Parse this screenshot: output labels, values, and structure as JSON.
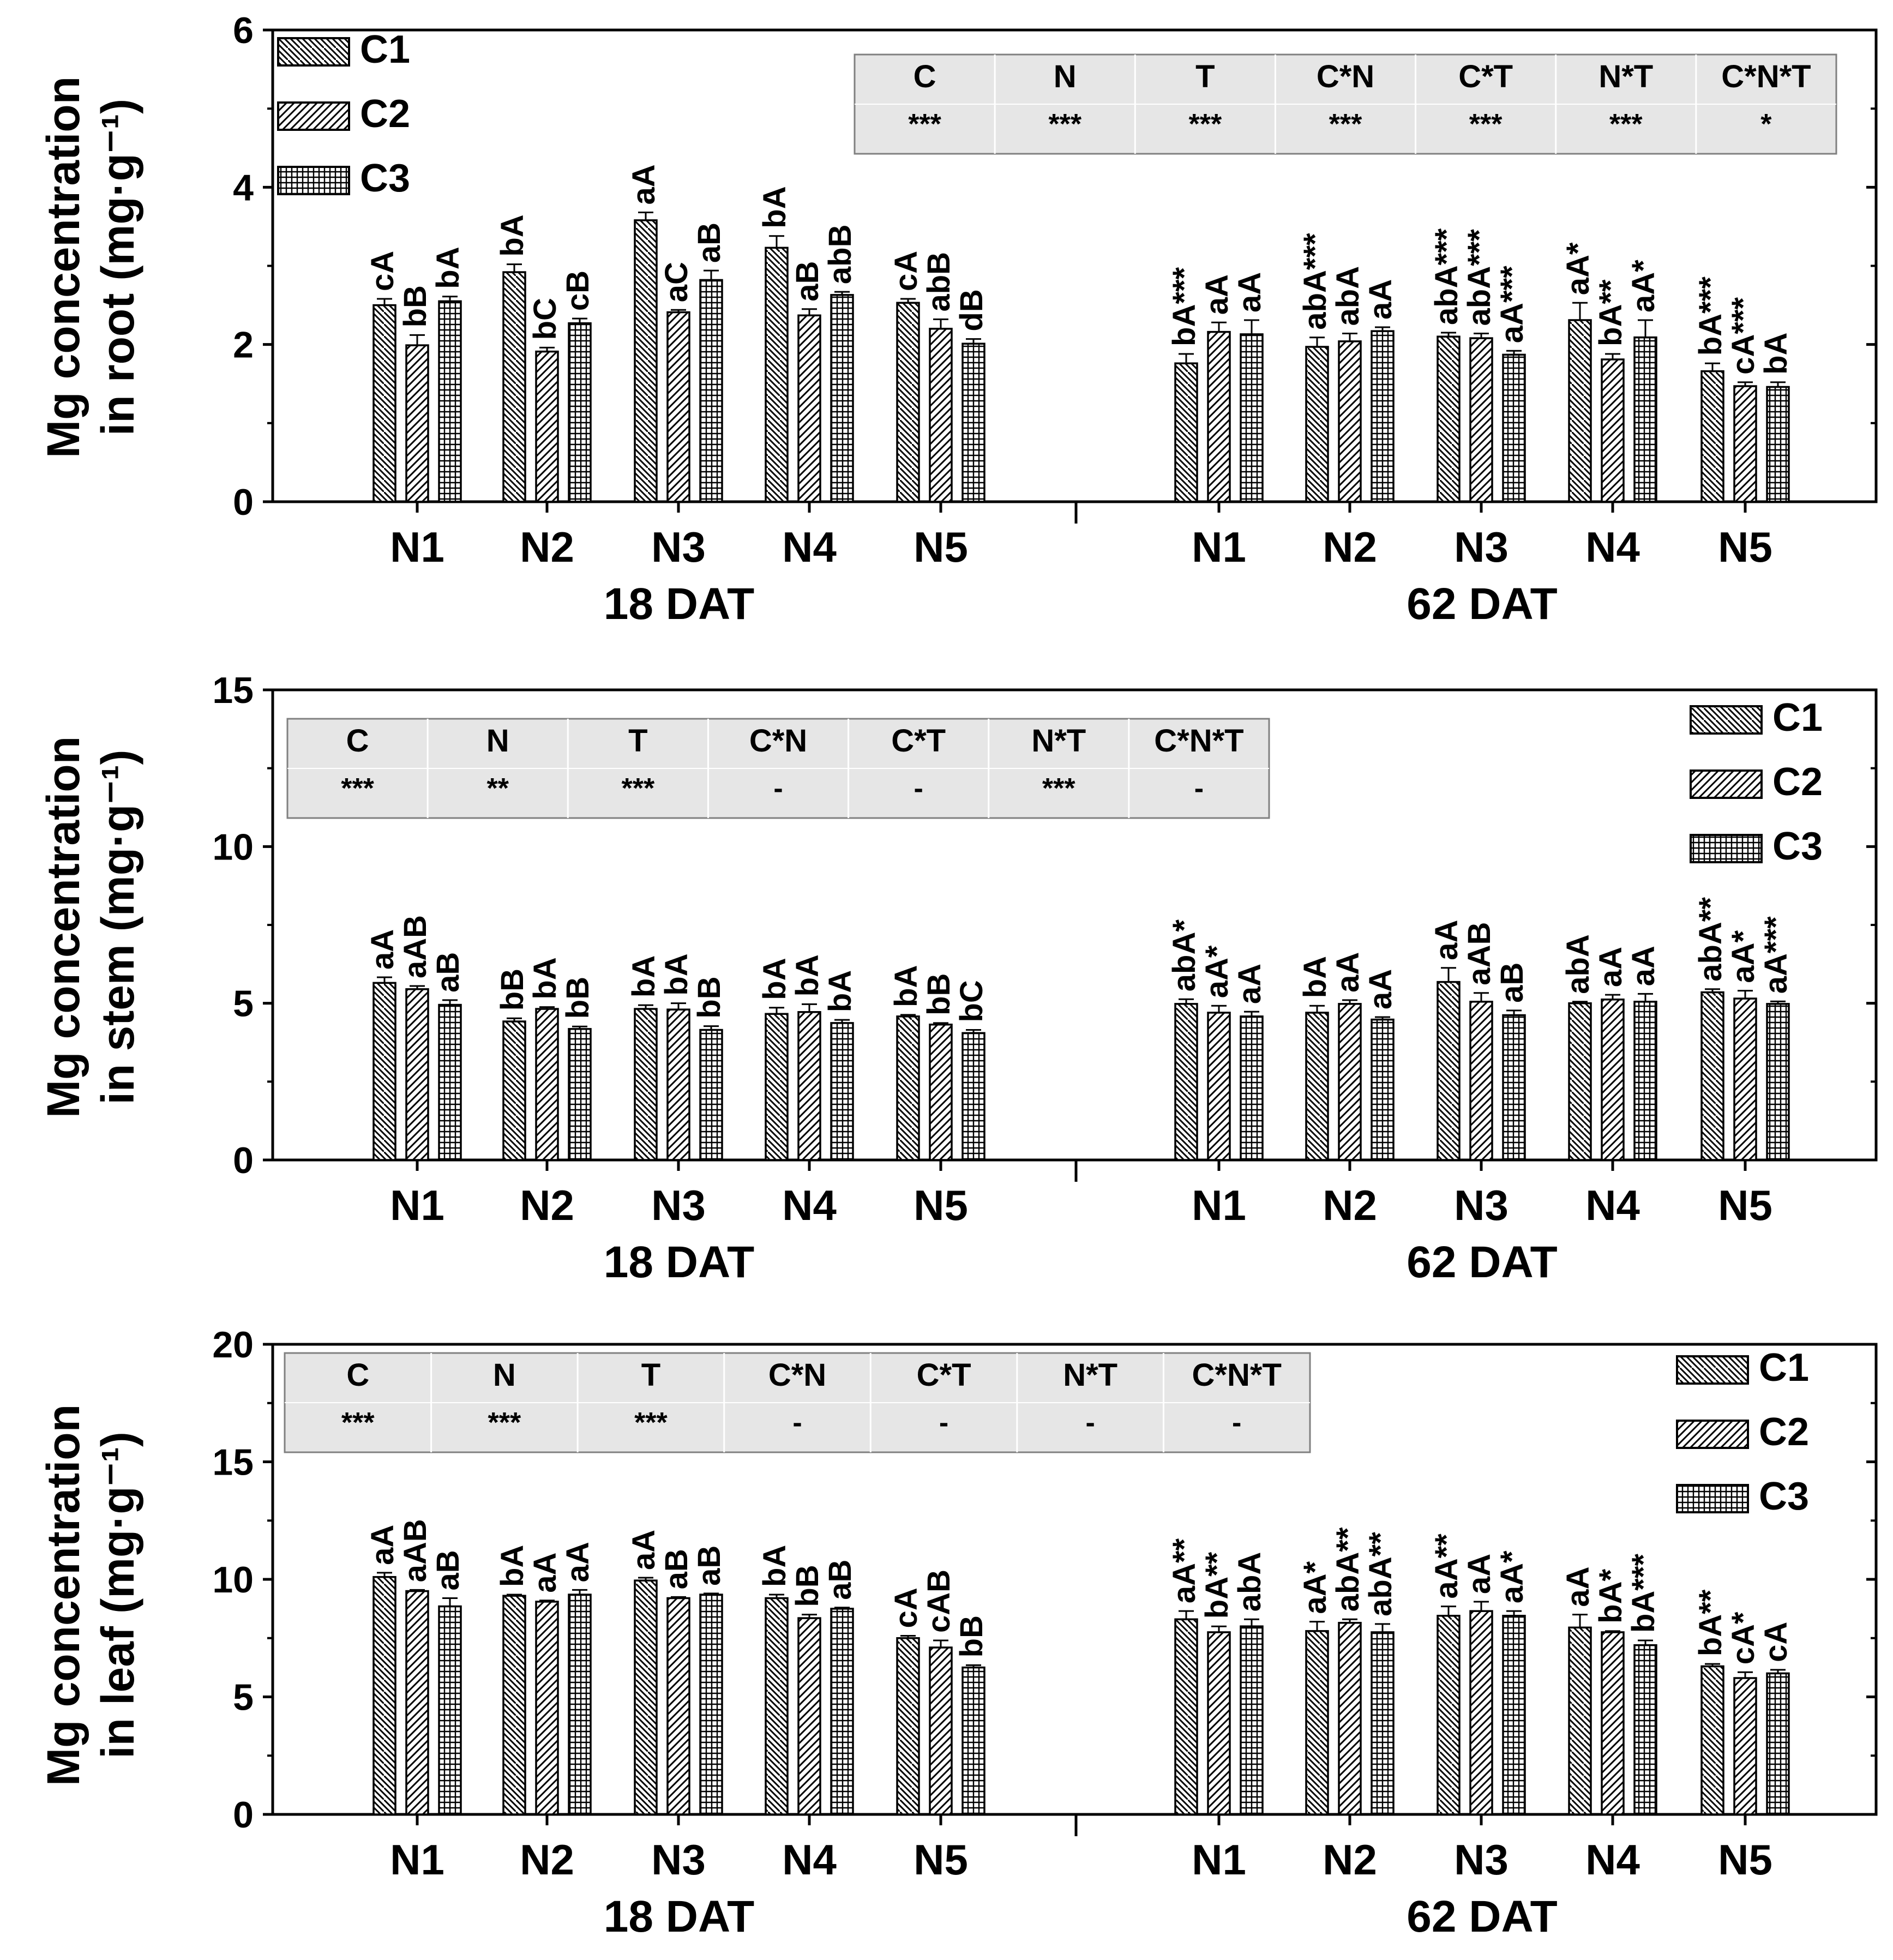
{
  "chart_data": [
    {
      "type": "bar",
      "panel": "root",
      "ylabel_line1": "Mg concentration",
      "ylabel_line2": "in root (mg·g⁻¹)",
      "ylim": [
        0,
        6
      ],
      "yticks": [
        0,
        2,
        4,
        6
      ],
      "legend_position": "top-left",
      "groups": [
        "18 DAT",
        "62 DAT"
      ],
      "categories": [
        "N1",
        "N2",
        "N3",
        "N4",
        "N5"
      ],
      "series_names": [
        "C1",
        "C2",
        "C3"
      ],
      "values": {
        "18 DAT": {
          "C1": [
            2.5,
            2.92,
            3.58,
            3.23,
            2.53
          ],
          "C2": [
            1.99,
            1.91,
            2.41,
            2.37,
            2.2
          ],
          "C3": [
            2.55,
            2.27,
            2.82,
            2.63,
            2.01
          ]
        },
        "62 DAT": {
          "C1": [
            1.76,
            1.97,
            2.1,
            2.31,
            1.66
          ],
          "C2": [
            2.16,
            2.04,
            2.08,
            1.81,
            1.47
          ],
          "C3": [
            2.13,
            2.17,
            1.87,
            2.09,
            1.46
          ]
        }
      },
      "errors": {
        "18 DAT": {
          "C1": [
            0.08,
            0.1,
            0.1,
            0.15,
            0.05
          ],
          "C2": [
            0.13,
            0.05,
            0.03,
            0.08,
            0.12
          ],
          "C3": [
            0.06,
            0.06,
            0.12,
            0.04,
            0.06
          ]
        },
        "62 DAT": {
          "C1": [
            0.12,
            0.12,
            0.05,
            0.22,
            0.1
          ],
          "C2": [
            0.12,
            0.1,
            0.06,
            0.07,
            0.05
          ],
          "C3": [
            0.18,
            0.05,
            0.05,
            0.22,
            0.06
          ]
        }
      },
      "annotations": {
        "18 DAT": {
          "C1": [
            "cA",
            "bA",
            "aA",
            "bA",
            "cA"
          ],
          "C2": [
            "bB",
            "bC",
            "aC",
            "aB",
            "abB"
          ],
          "C3": [
            "bA",
            "cB",
            "aB",
            "abB",
            "dB"
          ]
        },
        "62 DAT": {
          "C1": [
            "bA***",
            "abA***",
            "abA***",
            "aA*",
            "bA***"
          ],
          "C2": [
            "aA",
            "abA",
            "abA***",
            "bA**",
            "cA***"
          ],
          "C3": [
            "aA",
            "aA",
            "aA***",
            "aA*",
            "bA"
          ]
        }
      },
      "anova_table": {
        "headers": [
          "C",
          "N",
          "T",
          "C*N",
          "C*T",
          "N*T",
          "C*N*T"
        ],
        "values": [
          "***",
          "***",
          "***",
          "***",
          "***",
          "***",
          "*"
        ]
      }
    },
    {
      "type": "bar",
      "panel": "stem",
      "ylabel_line1": "Mg concentration",
      "ylabel_line2": "in stem (mg·g⁻¹)",
      "ylim": [
        0,
        15
      ],
      "yticks": [
        0,
        5,
        10,
        15
      ],
      "legend_position": "top-right",
      "groups": [
        "18 DAT",
        "62 DAT"
      ],
      "categories": [
        "N1",
        "N2",
        "N3",
        "N4",
        "N5"
      ],
      "series_names": [
        "C1",
        "C2",
        "C3"
      ],
      "values": {
        "18 DAT": {
          "C1": [
            5.65,
            4.42,
            4.82,
            4.66,
            4.58
          ],
          "C2": [
            5.45,
            4.82,
            4.8,
            4.72,
            4.32
          ],
          "C3": [
            4.95,
            4.18,
            4.15,
            4.37,
            4.05
          ]
        },
        "62 DAT": {
          "C1": [
            4.98,
            4.7,
            5.68,
            5.0,
            5.35
          ],
          "C2": [
            4.7,
            4.98,
            5.05,
            5.12,
            5.15
          ],
          "C3": [
            4.58,
            4.48,
            4.62,
            5.05,
            4.98
          ]
        }
      },
      "errors": {
        "18 DAT": {
          "C1": [
            0.18,
            0.1,
            0.12,
            0.2,
            0.05
          ],
          "C2": [
            0.1,
            0.06,
            0.2,
            0.25,
            0.05
          ],
          "C3": [
            0.15,
            0.08,
            0.12,
            0.1,
            0.1
          ]
        },
        "62 DAT": {
          "C1": [
            0.15,
            0.22,
            0.45,
            0.05,
            0.1
          ],
          "C2": [
            0.22,
            0.12,
            0.28,
            0.15,
            0.25
          ],
          "C3": [
            0.15,
            0.08,
            0.15,
            0.25,
            0.08
          ]
        }
      },
      "annotations": {
        "18 DAT": {
          "C1": [
            "aA",
            "bB",
            "bA",
            "bA",
            "bA"
          ],
          "C2": [
            "aAB",
            "bA",
            "bA",
            "bA",
            "bB"
          ],
          "C3": [
            "aB",
            "bB",
            "bB",
            "bA",
            "bC"
          ]
        },
        "62 DAT": {
          "C1": [
            "abA*",
            "bA",
            "aA",
            "abA",
            "abA**"
          ],
          "C2": [
            "aA*",
            "aA",
            "aAB",
            "aA",
            "aA*"
          ],
          "C3": [
            "aA",
            "aA",
            "aB",
            "aA",
            "aA***"
          ]
        }
      },
      "anova_table": {
        "headers": [
          "C",
          "N",
          "T",
          "C*N",
          "C*T",
          "N*T",
          "C*N*T"
        ],
        "values": [
          "***",
          "**",
          "***",
          "-",
          "-",
          "***",
          "-"
        ]
      }
    },
    {
      "type": "bar",
      "panel": "leaf",
      "ylabel_line1": "Mg concentration",
      "ylabel_line2": "in leaf (mg·g⁻¹)",
      "ylim": [
        0,
        20
      ],
      "yticks": [
        0,
        5,
        10,
        15,
        20
      ],
      "legend_position": "top-right",
      "groups": [
        "18 DAT",
        "62 DAT"
      ],
      "categories": [
        "N1",
        "N2",
        "N3",
        "N4",
        "N5"
      ],
      "series_names": [
        "C1",
        "C2",
        "C3"
      ],
      "values": {
        "18 DAT": {
          "C1": [
            10.1,
            9.3,
            9.95,
            9.2,
            7.5
          ],
          "C2": [
            9.5,
            9.05,
            9.2,
            8.35,
            7.1
          ],
          "C3": [
            8.85,
            9.35,
            9.35,
            8.75,
            6.25
          ]
        },
        "62 DAT": {
          "C1": [
            8.3,
            7.8,
            8.45,
            7.95,
            6.3
          ],
          "C2": [
            7.75,
            8.15,
            8.65,
            7.75,
            5.8
          ],
          "C3": [
            8.0,
            7.75,
            8.45,
            7.2,
            6.0
          ]
        }
      },
      "errors": {
        "18 DAT": {
          "C1": [
            0.18,
            0.05,
            0.12,
            0.15,
            0.1
          ],
          "C2": [
            0.05,
            0.05,
            0.05,
            0.15,
            0.3
          ],
          "C3": [
            0.35,
            0.2,
            0.05,
            0.05,
            0.1
          ]
        },
        "62 DAT": {
          "C1": [
            0.35,
            0.4,
            0.4,
            0.55,
            0.1
          ],
          "C2": [
            0.25,
            0.15,
            0.4,
            0.05,
            0.25
          ],
          "C3": [
            0.3,
            0.35,
            0.2,
            0.2,
            0.15
          ]
        }
      },
      "annotations": {
        "18 DAT": {
          "C1": [
            "aA",
            "bA",
            "aA",
            "bA",
            "cA"
          ],
          "C2": [
            "aAB",
            "aA",
            "aB",
            "bB",
            "cAB"
          ],
          "C3": [
            "aB",
            "aA",
            "aB",
            "aB",
            "bB"
          ]
        },
        "62 DAT": {
          "C1": [
            "aA**",
            "aA*",
            "aA**",
            "aA",
            "bA**"
          ],
          "C2": [
            "bA**",
            "abA**",
            "aA",
            "bA*",
            "cA*"
          ],
          "C3": [
            "abA",
            "abA**",
            "aA*",
            "bA***",
            "cA"
          ]
        }
      },
      "anova_table": {
        "headers": [
          "C",
          "N",
          "T",
          "C*N",
          "C*T",
          "N*T",
          "C*N*T"
        ],
        "values": [
          "***",
          "***",
          "***",
          "-",
          "-",
          "-",
          "-"
        ]
      }
    }
  ]
}
